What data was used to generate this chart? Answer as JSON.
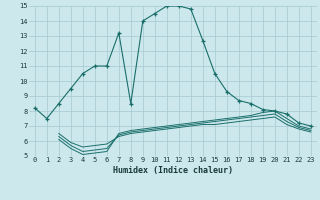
{
  "xlabel": "Humidex (Indice chaleur)",
  "bg_color": "#cce8ec",
  "grid_color": "#aacdd4",
  "line_color": "#1a6e6a",
  "xlim": [
    -0.5,
    23.5
  ],
  "ylim": [
    5,
    15
  ],
  "yticks": [
    5,
    6,
    7,
    8,
    9,
    10,
    11,
    12,
    13,
    14,
    15
  ],
  "xticks": [
    0,
    1,
    2,
    3,
    4,
    5,
    6,
    7,
    8,
    9,
    10,
    11,
    12,
    13,
    14,
    15,
    16,
    17,
    18,
    19,
    20,
    21,
    22,
    23
  ],
  "line1_x": [
    0,
    1,
    2,
    3,
    4,
    5,
    6,
    7,
    8,
    9,
    10,
    11,
    12,
    13,
    14,
    15,
    16,
    17,
    18,
    19,
    20,
    21,
    22,
    23
  ],
  "line1_y": [
    8.2,
    7.5,
    8.5,
    9.5,
    10.5,
    11.0,
    11.0,
    13.2,
    8.5,
    14.0,
    14.5,
    15.0,
    15.0,
    14.8,
    12.7,
    10.5,
    9.3,
    8.7,
    8.5,
    8.1,
    8.0,
    7.8,
    7.2,
    7.0
  ],
  "line2_x": [
    2,
    3,
    4,
    5,
    6,
    7,
    8,
    9,
    10,
    11,
    12,
    13,
    14,
    15,
    16,
    17,
    18,
    19,
    20,
    21,
    22,
    23
  ],
  "line2_y": [
    6.1,
    5.5,
    5.1,
    5.2,
    5.3,
    6.5,
    6.7,
    6.8,
    6.9,
    7.0,
    7.1,
    7.2,
    7.3,
    7.4,
    7.5,
    7.6,
    7.7,
    7.9,
    8.0,
    7.5,
    7.0,
    6.8
  ],
  "line3_x": [
    2,
    3,
    4,
    5,
    6,
    7,
    8,
    9,
    10,
    11,
    12,
    13,
    14,
    15,
    16,
    17,
    18,
    19,
    20,
    21,
    22,
    23
  ],
  "line3_y": [
    6.3,
    5.7,
    5.3,
    5.4,
    5.5,
    6.4,
    6.6,
    6.7,
    6.8,
    6.9,
    7.0,
    7.1,
    7.2,
    7.3,
    7.4,
    7.5,
    7.6,
    7.7,
    7.8,
    7.3,
    6.9,
    6.7
  ],
  "line4_x": [
    2,
    3,
    4,
    5,
    6,
    7,
    8,
    9,
    10,
    11,
    12,
    13,
    14,
    15,
    16,
    17,
    18,
    19,
    20,
    21,
    22,
    23
  ],
  "line4_y": [
    6.5,
    5.9,
    5.6,
    5.7,
    5.8,
    6.3,
    6.5,
    6.6,
    6.7,
    6.8,
    6.9,
    7.0,
    7.1,
    7.1,
    7.2,
    7.3,
    7.4,
    7.5,
    7.6,
    7.1,
    6.8,
    6.6
  ]
}
